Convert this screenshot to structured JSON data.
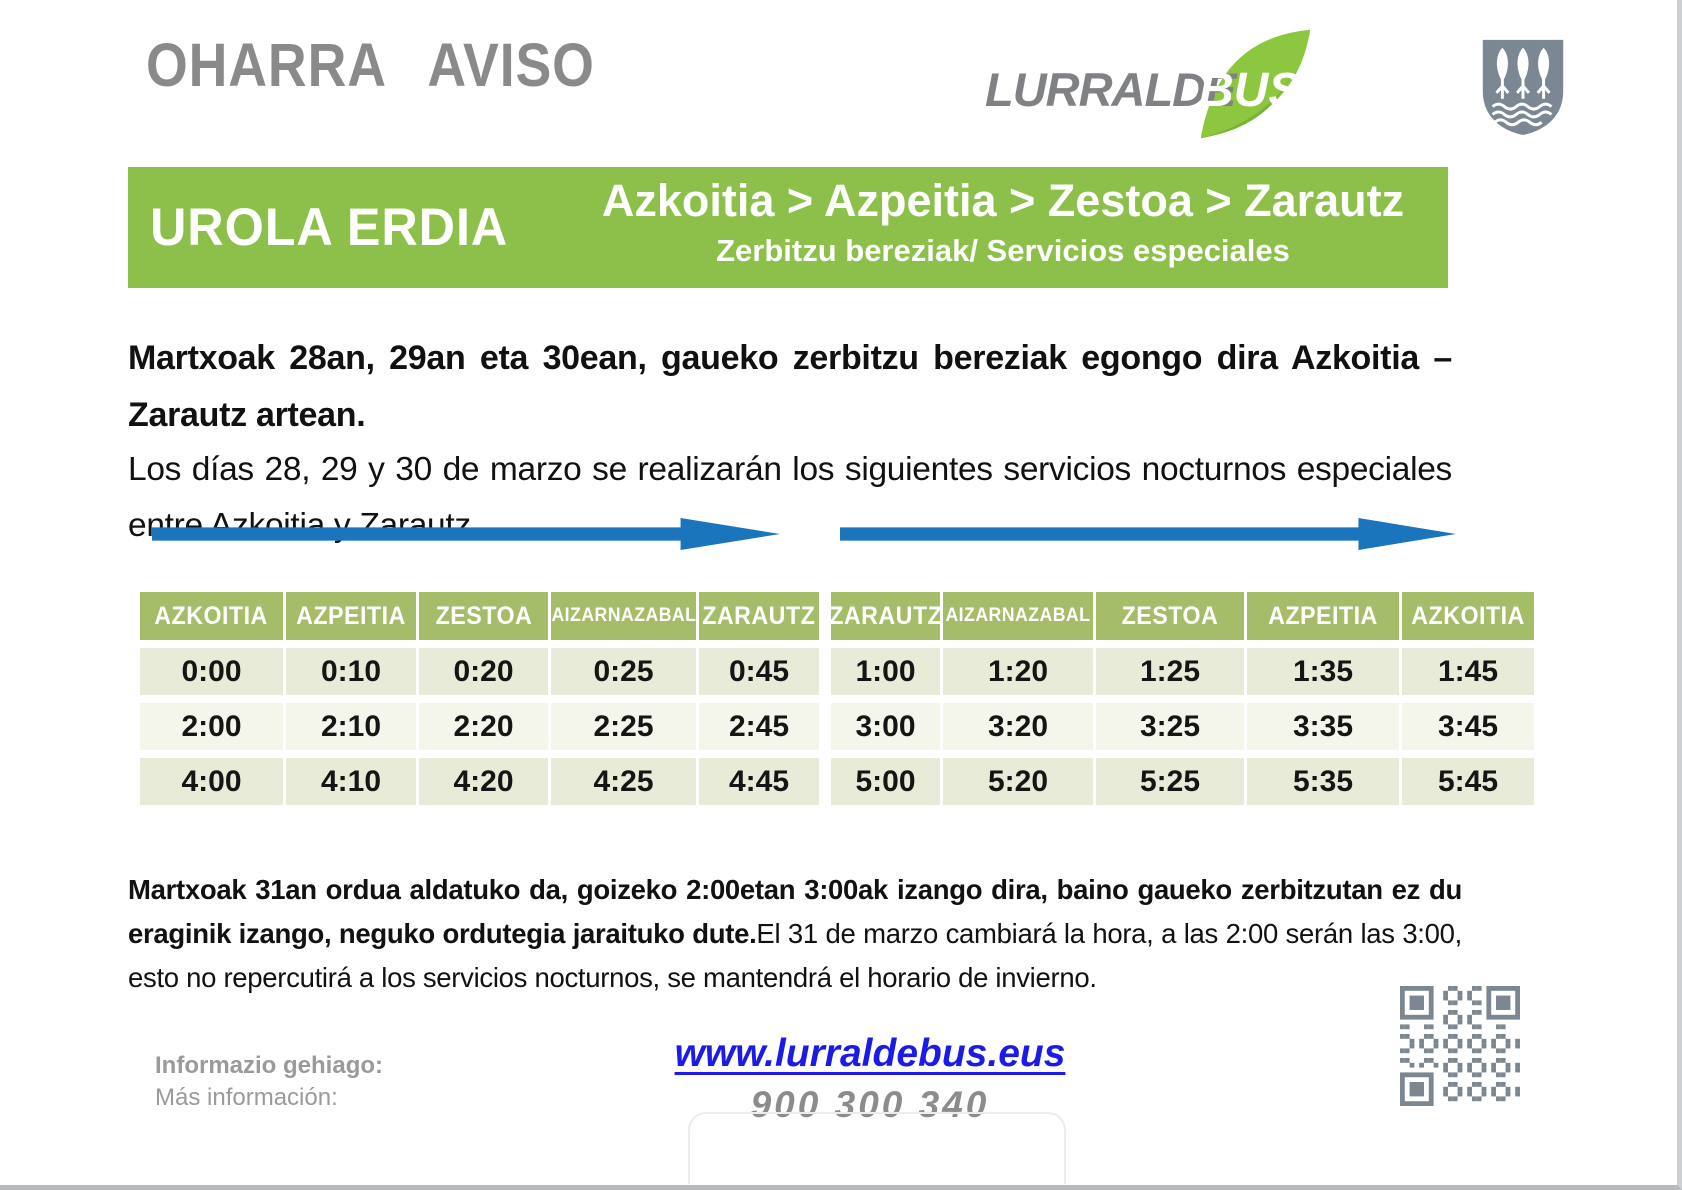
{
  "header": {
    "title_eu": "OHARRA",
    "title_es": "AVISO"
  },
  "logo": {
    "brand_gray": "LURRALDE",
    "brand_green": "BUS"
  },
  "banner": {
    "region": "UROLA ERDIA",
    "route": "Azkoitia > Azpeitia > Zestoa > Zarautz",
    "subtitle": "Zerbitzu bereziak/ Servicios especiales"
  },
  "intro": {
    "eu": "Martxoak 28an, 29an eta 30ean, gaueko zerbitzu bereziak egongo dira Azkoitia – Zarautz artean.",
    "es": "Los días 28, 29 y 30 de marzo se realizarán los siguientes servicios nocturnos especiales entre Azkoitia y Zarautz."
  },
  "timetables": {
    "outbound": {
      "columns": [
        "AZKOITIA",
        "AZPEITIA",
        "ZESTOA",
        "AIZARNAZABAL",
        "ZARAUTZ"
      ],
      "rows": [
        [
          "0:00",
          "0:10",
          "0:20",
          "0:25",
          "0:45"
        ],
        [
          "2:00",
          "2:10",
          "2:20",
          "2:25",
          "2:45"
        ],
        [
          "4:00",
          "4:10",
          "4:20",
          "4:25",
          "4:45"
        ]
      ]
    },
    "return": {
      "columns": [
        "ZARAUTZ",
        "AIZARNAZABAL",
        "ZESTOA",
        "AZPEITIA",
        "AZKOITIA"
      ],
      "rows": [
        [
          "1:00",
          "1:20",
          "1:25",
          "1:35",
          "1:45"
        ],
        [
          "3:00",
          "3:20",
          "3:25",
          "3:35",
          "3:45"
        ],
        [
          "5:00",
          "5:20",
          "5:25",
          "5:35",
          "5:45"
        ]
      ]
    }
  },
  "note": {
    "eu": "Martxoak 31an ordua aldatuko da, goizeko 2:00etan 3:00ak izango dira, baino gaueko zerbitzutan ez du eraginik izango, neguko ordutegia jaraituko dute.",
    "es": "El 31 de marzo cambiará la hora, a las 2:00 serán las 3:00, esto no repercutirá a los servicios nocturnos, se mantendrá el horario de invierno."
  },
  "footer": {
    "more_info_eu": "Informazio gehiago:",
    "more_info_es": "Más información:",
    "website": "www.lurraldebus.eus",
    "phone": "900 300 340"
  },
  "colors": {
    "banner_green": "#8cc04a",
    "table_header_green": "#a5bd69",
    "row_light": "#f4f6ec",
    "row_dark": "#e7ebd8",
    "arrow_blue": "#1b75bd",
    "link_blue": "#1b1be8",
    "brand_leaf_green": "#8dc63f",
    "title_gray": "#8a8a8a"
  }
}
